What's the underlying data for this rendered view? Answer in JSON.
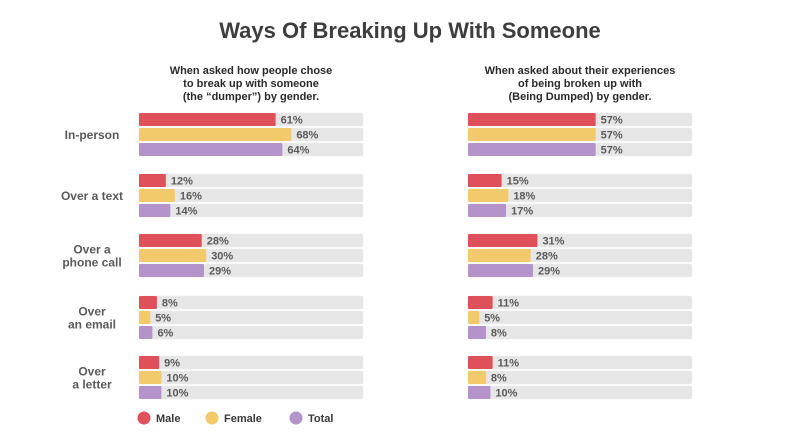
{
  "title": "Ways Of Breaking Up With Someone",
  "colors": {
    "male": "#e0505a",
    "female": "#f2c96b",
    "total": "#b393c9",
    "track": "#e6e6e6",
    "title": "#3d3d3d",
    "text": "#5a5a5a"
  },
  "legend": [
    {
      "key": "male",
      "label": "Male"
    },
    {
      "key": "female",
      "label": "Female"
    },
    {
      "key": "total",
      "label": "Total"
    }
  ],
  "chart_data": [
    {
      "type": "bar",
      "title": "When asked how people chose to break up with someone (the “dumper”) by gender.",
      "title_lines": [
        "When asked how people chose",
        "to break up with someone",
        "(the “dumper”) by gender."
      ],
      "categories": [
        "In-person",
        "Over a text",
        "Over a phone call",
        "Over an email",
        "Over a letter"
      ],
      "category_lines": [
        [
          "In-person"
        ],
        [
          "Over a text"
        ],
        [
          "Over a",
          "phone call"
        ],
        [
          "Over",
          "an email"
        ],
        [
          "Over",
          "a letter"
        ]
      ],
      "series": [
        {
          "name": "Male",
          "values": [
            61,
            12,
            28,
            8,
            9
          ]
        },
        {
          "name": "Female",
          "values": [
            68,
            16,
            30,
            5,
            10
          ]
        },
        {
          "name": "Total",
          "values": [
            64,
            14,
            29,
            6,
            10
          ]
        }
      ],
      "value_labels": [
        [
          "61%",
          "12%",
          "28%",
          "8%",
          "9%"
        ],
        [
          "68%",
          "16%",
          "30%",
          "5%",
          "10%"
        ],
        [
          "64%",
          "14%",
          "29%",
          "6%",
          "10%"
        ]
      ],
      "xlim": [
        0,
        100
      ],
      "unit": "%"
    },
    {
      "type": "bar",
      "title": "When asked about their experiences of being broken up with (Being Dumped) by gender.",
      "title_lines": [
        "When asked about their experiences",
        "of being broken up with",
        "(Being Dumped) by gender."
      ],
      "categories": [
        "In-person",
        "Over a text",
        "Over a phone call",
        "Over an email",
        "Over a letter"
      ],
      "series": [
        {
          "name": "Male",
          "values": [
            57,
            15,
            31,
            11,
            11
          ]
        },
        {
          "name": "Female",
          "values": [
            57,
            18,
            28,
            5,
            8
          ]
        },
        {
          "name": "Total",
          "values": [
            57,
            17,
            29,
            8,
            10
          ]
        }
      ],
      "value_labels": [
        [
          "57%",
          "15%",
          "31%",
          "11%",
          "11%"
        ],
        [
          "57%",
          "18%",
          "28%",
          "5%",
          "8%"
        ],
        [
          "57%",
          "17%",
          "29%",
          "8%",
          "10%"
        ]
      ],
      "xlim": [
        0,
        100
      ],
      "unit": "%"
    }
  ]
}
